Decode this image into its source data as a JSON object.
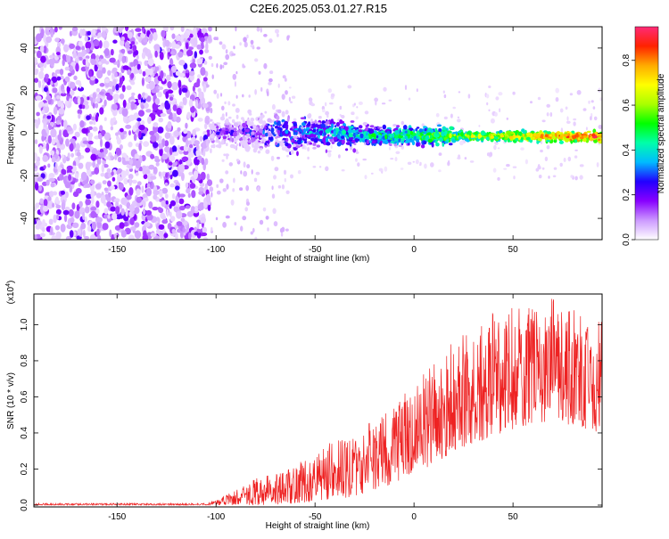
{
  "title": "C2E6.2025.053.01.27.R15",
  "colors": {
    "snr_line": "#ee2222",
    "axis": "#000000",
    "background": "#ffffff"
  },
  "chart_data": [
    {
      "type": "heatmap",
      "name": "spectrogram",
      "xlabel": "Height of straight line (km)",
      "ylabel": "Frequency (Hz)",
      "xlim": [
        -192,
        95
      ],
      "ylim": [
        -50,
        50
      ],
      "xticks": [
        -150,
        -100,
        -50,
        0,
        50
      ],
      "yticks": [
        -40,
        -20,
        0,
        20,
        40
      ],
      "xtick_labels": [
        "-150",
        "-100",
        "-50",
        "0",
        "50"
      ],
      "ytick_labels": [
        "-40",
        "-20",
        "0",
        "20",
        "40"
      ],
      "description_regions": [
        {
          "x_range": [
            -192,
            -103
          ],
          "freq_range": [
            -50,
            50
          ],
          "amplitude": "low noise (0.05-0.25)"
        },
        {
          "x_range": [
            -103,
            -30
          ],
          "freq_range": [
            -8,
            8
          ],
          "amplitude": "0.15-0.45 band near 0 Hz"
        },
        {
          "x_range": [
            -30,
            20
          ],
          "freq_range": [
            -4,
            4
          ],
          "amplitude": "0.3-0.7 band near 0 Hz"
        },
        {
          "x_range": [
            20,
            95
          ],
          "freq_range": [
            -3,
            1
          ],
          "amplitude": "0.6-0.95 narrow band, slight negative drift"
        }
      ],
      "colorbar": {
        "label": "Normalized spectral amplitude",
        "range": [
          0,
          0.95
        ],
        "ticks": [
          0.0,
          0.2,
          0.4,
          0.6,
          0.8
        ],
        "tick_labels": [
          "0.0",
          "0.2",
          "0.4",
          "0.6",
          "0.8"
        ],
        "colormap": [
          "#ffffff",
          "#cc99ff",
          "#8800ff",
          "#2200ff",
          "#00bbff",
          "#00ffaa",
          "#00ff00",
          "#aaff00",
          "#ffff00",
          "#ffaa00",
          "#ff2200",
          "#ff2a77"
        ]
      }
    },
    {
      "type": "line",
      "name": "snr",
      "xlabel": "Height of straight line (km)",
      "ylabel": "SNR (10 * v/v)",
      "y_multiplier": "(x10",
      "y_multiplier_exp": "4",
      "y_multiplier_close": ")",
      "xlim": [
        -192,
        95
      ],
      "ylim": [
        -0.01,
        1.17
      ],
      "xticks": [
        -150,
        -100,
        -50,
        0,
        50
      ],
      "yticks": [
        0.0,
        0.2,
        0.4,
        0.6,
        0.8,
        1.0
      ],
      "xtick_labels": [
        "-150",
        "-100",
        "-50",
        "0",
        "50"
      ],
      "ytick_labels": [
        "0.0",
        "0.2",
        "0.4",
        "0.6",
        "0.8",
        "1.0"
      ],
      "envelope": {
        "x": [
          -192,
          -105,
          -100,
          -90,
          -80,
          -70,
          -60,
          -50,
          -40,
          -30,
          -20,
          -10,
          0,
          10,
          20,
          30,
          40,
          50,
          60,
          70,
          80,
          95
        ],
        "low": [
          0.0,
          0.0,
          0.0,
          0.0,
          0.0,
          0.0,
          0.01,
          0.02,
          0.03,
          0.05,
          0.08,
          0.12,
          0.18,
          0.22,
          0.3,
          0.34,
          0.38,
          0.42,
          0.45,
          0.46,
          0.44,
          0.4
        ],
        "high": [
          0.01,
          0.01,
          0.03,
          0.08,
          0.16,
          0.18,
          0.22,
          0.3,
          0.36,
          0.4,
          0.48,
          0.55,
          0.68,
          0.8,
          0.92,
          1.0,
          1.07,
          1.12,
          1.1,
          1.15,
          1.1,
          1.02
        ]
      }
    }
  ]
}
